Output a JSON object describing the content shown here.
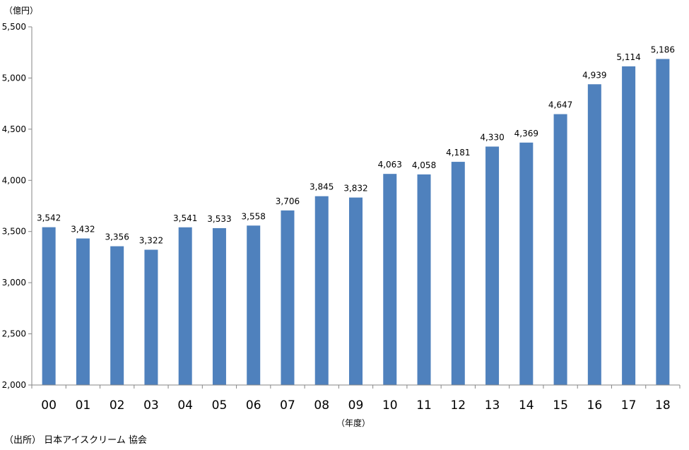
{
  "chart_data": {
    "type": "bar",
    "title": "",
    "y_unit_label": "（億円）",
    "x_unit_label": "（年度）",
    "categories": [
      "00",
      "01",
      "02",
      "03",
      "04",
      "05",
      "06",
      "07",
      "08",
      "09",
      "10",
      "11",
      "12",
      "13",
      "14",
      "15",
      "16",
      "17",
      "18"
    ],
    "values": [
      3542,
      3432,
      3356,
      3322,
      3541,
      3533,
      3558,
      3706,
      3845,
      3832,
      4063,
      4058,
      4181,
      4330,
      4369,
      4647,
      4939,
      5114,
      5186
    ],
    "value_labels": [
      "3,542",
      "3,432",
      "3,356",
      "3,322",
      "3,541",
      "3,533",
      "3,558",
      "3,706",
      "3,845",
      "3,832",
      "4,063",
      "4,058",
      "4,181",
      "4,330",
      "4,369",
      "4,647",
      "4,939",
      "5,114",
      "5,186"
    ],
    "ylim": [
      2000,
      5500
    ],
    "yticks": [
      2000,
      2500,
      3000,
      3500,
      4000,
      4500,
      5000,
      5500
    ],
    "ytick_labels": [
      "2,000",
      "2,500",
      "3,000",
      "3,500",
      "4,000",
      "4,500",
      "5,000",
      "5,500"
    ],
    "bar_color": "#4f81bd",
    "grid": false,
    "legend": "none"
  },
  "source_note": "（出所） 日本アイスクリーム 協会"
}
